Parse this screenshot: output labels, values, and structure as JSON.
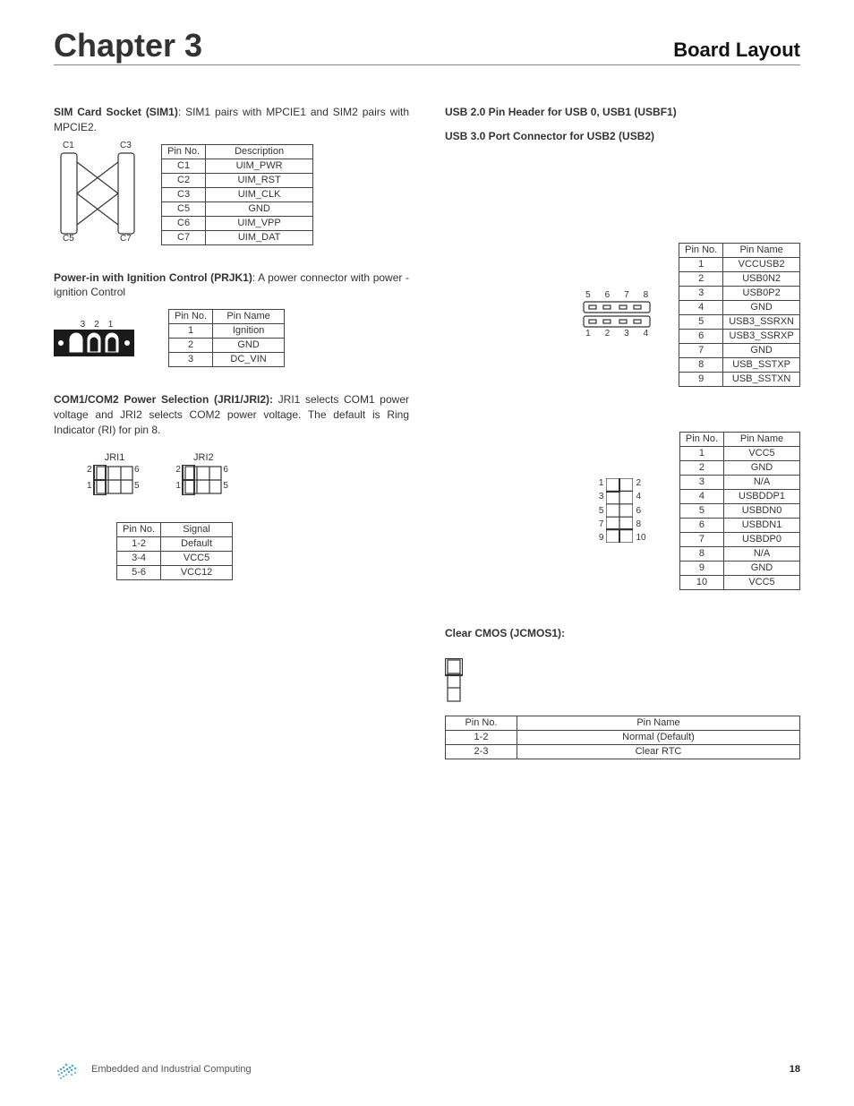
{
  "chapter_heading": "Chapter 3",
  "layout_heading": "Board Layout",
  "footer_text": "Embedded and Industrial Computing",
  "page_number": "18",
  "sim1": {
    "title": "SIM Card Socket (SIM1)",
    "desc": ": SIM1 pairs with MPCIE1 and SIM2 pairs with MPCIE2.",
    "dia_labels": [
      "C1",
      "C3",
      "C5",
      "C7"
    ],
    "table_head": [
      "Pin No.",
      "Description"
    ],
    "rows": [
      [
        "C1",
        "UIM_PWR"
      ],
      [
        "C2",
        "UIM_RST"
      ],
      [
        "C3",
        "UIM_CLK"
      ],
      [
        "C5",
        "GND"
      ],
      [
        "C6",
        "UIM_VPP"
      ],
      [
        "C7",
        "UIM_DAT"
      ]
    ]
  },
  "prjk1": {
    "title": "Power-in with Ignition Control (PRJK1)",
    "desc": ":  A power connector with power -ignition Control",
    "dia_labels": [
      "3",
      "2",
      "1"
    ],
    "table_head": [
      "Pin No.",
      "Pin Name"
    ],
    "rows": [
      [
        "1",
        "Ignition"
      ],
      [
        "2",
        "GND"
      ],
      [
        "3",
        "DC_VIN"
      ]
    ]
  },
  "jri": {
    "title": "COM1/COM2 Power Selection (JRI1/JRI2):",
    "desc": " JRI1 selects COM1 power voltage and JRI2 selects COM2 power voltage. The default is Ring Indicator (RI) for pin 8.",
    "labels": [
      "JRI1",
      "JRI2"
    ],
    "pinpairs": [
      [
        "2",
        "6"
      ],
      [
        "1",
        "5"
      ]
    ],
    "table_head": [
      "Pin No.",
      "Signal"
    ],
    "rows": [
      [
        "1-2",
        "Default"
      ],
      [
        "3-4",
        "VCC5"
      ],
      [
        "5-6",
        "VCC12"
      ]
    ]
  },
  "usbf1": {
    "line1": "USB 2.0 Pin Header for USB 0, USB1 (USBF1)",
    "line2": "USB 3.0 Port Connector for USB2 (USB2)",
    "top_labels": [
      "5",
      "6",
      "7",
      "8"
    ],
    "bot_labels": [
      "1",
      "2",
      "3",
      "4"
    ],
    "table_head": [
      "Pin No.",
      "Pin Name"
    ],
    "rows": [
      [
        "1",
        "VCCUSB2"
      ],
      [
        "2",
        "USB0N2"
      ],
      [
        "3",
        "USB0P2"
      ],
      [
        "4",
        "GND"
      ],
      [
        "5",
        "USB3_SSRXN"
      ],
      [
        "6",
        "USB3_SSRXP"
      ],
      [
        "7",
        "GND"
      ],
      [
        "8",
        "USB_SSTXP"
      ],
      [
        "9",
        "USB_SSTXN"
      ]
    ]
  },
  "usbf_10": {
    "left_labels": [
      "1",
      "3",
      "5",
      "7",
      "9"
    ],
    "right_labels": [
      "2",
      "4",
      "6",
      "8",
      "10"
    ],
    "table_head": [
      "Pin No.",
      "Pin Name"
    ],
    "rows": [
      [
        "1",
        "VCC5"
      ],
      [
        "2",
        "GND"
      ],
      [
        "3",
        "N/A"
      ],
      [
        "4",
        "USBDDP1"
      ],
      [
        "5",
        "USBDN0"
      ],
      [
        "6",
        "USBDN1"
      ],
      [
        "7",
        "USBDP0"
      ],
      [
        "8",
        "N/A"
      ],
      [
        "9",
        "GND"
      ],
      [
        "10",
        "VCC5"
      ]
    ]
  },
  "jcmos": {
    "title": "Clear CMOS (JCMOS1):",
    "table_head": [
      "Pin No.",
      "Pin Name"
    ],
    "rows": [
      [
        "1-2",
        "Normal (Default)"
      ],
      [
        "2-3",
        "Clear RTC"
      ]
    ]
  },
  "colors": {
    "line": "#333333",
    "fill_black": "#1a1a1a",
    "logo": "#4aa8d8"
  }
}
